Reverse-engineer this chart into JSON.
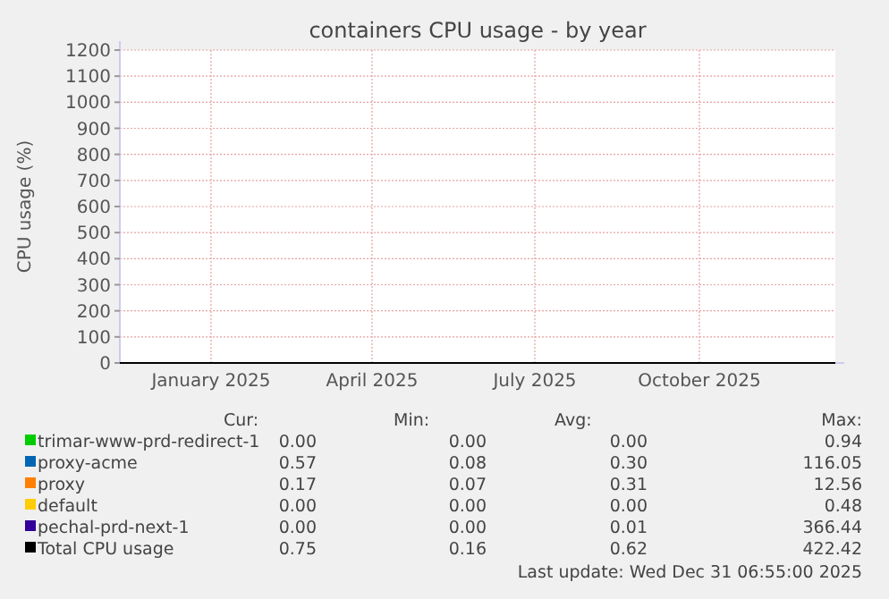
{
  "chart_data": {
    "type": "line",
    "title": "containers CPU usage - by year",
    "ylabel": "CPU usage (%)",
    "x": [
      "2024-11-26",
      "2025-01-01",
      "2025-04-01",
      "2025-07-01",
      "2025-10-01",
      "2025-12-31"
    ],
    "series": [
      {
        "name": "trimar-www-prd-redirect-1",
        "color": "#00cc00",
        "values": [
          null,
          null,
          null,
          null,
          null,
          null
        ]
      },
      {
        "name": "proxy-acme",
        "color": "#0066b3",
        "values": [
          null,
          null,
          null,
          null,
          null,
          null
        ]
      },
      {
        "name": "proxy",
        "color": "#ff8000",
        "values": [
          null,
          null,
          null,
          null,
          null,
          null
        ]
      },
      {
        "name": "default",
        "color": "#ffcc00",
        "values": [
          null,
          null,
          null,
          null,
          null,
          null
        ]
      },
      {
        "name": "pechal-prd-next-1",
        "color": "#330099",
        "values": [
          null,
          null,
          null,
          null,
          null,
          null
        ]
      },
      {
        "name": "Total CPU usage",
        "color": "#000000",
        "values": [
          0,
          0,
          0,
          0,
          0,
          0
        ]
      }
    ],
    "xlim": [
      "2024-11-26",
      "2025-12-31"
    ],
    "xticks": [
      {
        "value": "2025-01-16",
        "label": "January 2025"
      },
      {
        "value": "2025-04-16",
        "label": "April 2025"
      },
      {
        "value": "2025-07-16",
        "label": "July 2025"
      },
      {
        "value": "2025-10-16",
        "label": "October 2025"
      }
    ],
    "ylim": [
      0,
      1200
    ],
    "yticks": [
      0,
      100,
      200,
      300,
      400,
      500,
      600,
      700,
      800,
      900,
      1000,
      1100,
      1200
    ],
    "grid": true,
    "legend": "bottom",
    "annotations": [
      "Cur:",
      "Min:",
      "Avg:",
      "Max:",
      "0.00",
      "0.00",
      "0.00",
      "0.94",
      "0.57",
      "0.08",
      "0.30",
      "116.05",
      "0.17",
      "0.07",
      "0.31",
      "12.56",
      "0.00",
      "0.00",
      "0.00",
      "0.48",
      "0.00",
      "0.00",
      "0.01",
      "366.44",
      "0.75",
      "0.16",
      "0.62",
      "422.42",
      "Last update: Wed Dec 31 06:55:00 2025"
    ]
  }
}
